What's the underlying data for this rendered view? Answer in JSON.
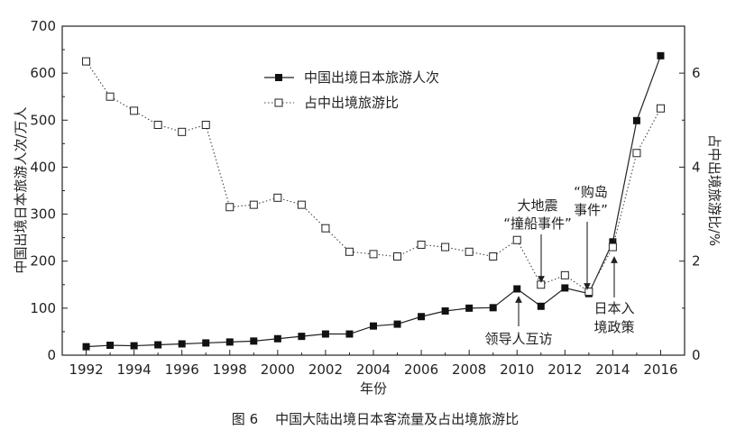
{
  "chart_data": {
    "type": "line",
    "x": [
      1992,
      1993,
      1994,
      1995,
      1996,
      1997,
      1998,
      1999,
      2000,
      2001,
      2002,
      2003,
      2004,
      2005,
      2006,
      2007,
      2008,
      2009,
      2010,
      2011,
      2012,
      2013,
      2014,
      2015,
      2016
    ],
    "series": [
      {
        "name": "中国出境日本旅游人次",
        "axis": "left",
        "marker": "filled-square",
        "line": "solid",
        "values": [
          18,
          21,
          20,
          22,
          24,
          26,
          28,
          30,
          35,
          40,
          45,
          45,
          62,
          66,
          82,
          94,
          100,
          101,
          141,
          104,
          143,
          131,
          241,
          499,
          637
        ]
      },
      {
        "name": "占中出境旅游比",
        "axis": "right",
        "marker": "open-square",
        "line": "dotted",
        "values": [
          6.25,
          5.5,
          5.2,
          4.9,
          4.75,
          4.9,
          3.15,
          3.2,
          3.35,
          3.2,
          2.7,
          2.2,
          2.15,
          2.1,
          2.35,
          2.3,
          2.2,
          2.1,
          2.45,
          1.5,
          1.7,
          1.35,
          2.3,
          4.3,
          5.25
        ]
      }
    ],
    "xlabel": "年份",
    "ylabel_left": "中国出境日本旅游人次/万人",
    "ylabel_right": "占中出境旅游比/%",
    "xlim": [
      1991,
      2017
    ],
    "ylim_left": [
      0,
      700
    ],
    "ylim_right": [
      0,
      7
    ],
    "xticks": [
      1992,
      1994,
      1996,
      1998,
      2000,
      2002,
      2004,
      2006,
      2008,
      2010,
      2012,
      2014,
      2016
    ],
    "yticks_left": [
      0,
      100,
      200,
      300,
      400,
      500,
      600,
      700
    ],
    "yticks_right": [
      0,
      2,
      4,
      6
    ],
    "grid": false,
    "legend_position": "top-center",
    "annotations": [
      {
        "lines": [
          "领导人互访"
        ],
        "x": 2010
      },
      {
        "lines": [
          "大地震",
          "“撞船事件”"
        ],
        "x": 2011
      },
      {
        "lines": [
          "“购岛",
          "事件”"
        ],
        "x": 2013
      },
      {
        "lines": [
          "日本入",
          "境政策"
        ],
        "x": 2014
      }
    ]
  },
  "caption": "图 6    中国大陆出境日本客流量及占出境旅游比"
}
